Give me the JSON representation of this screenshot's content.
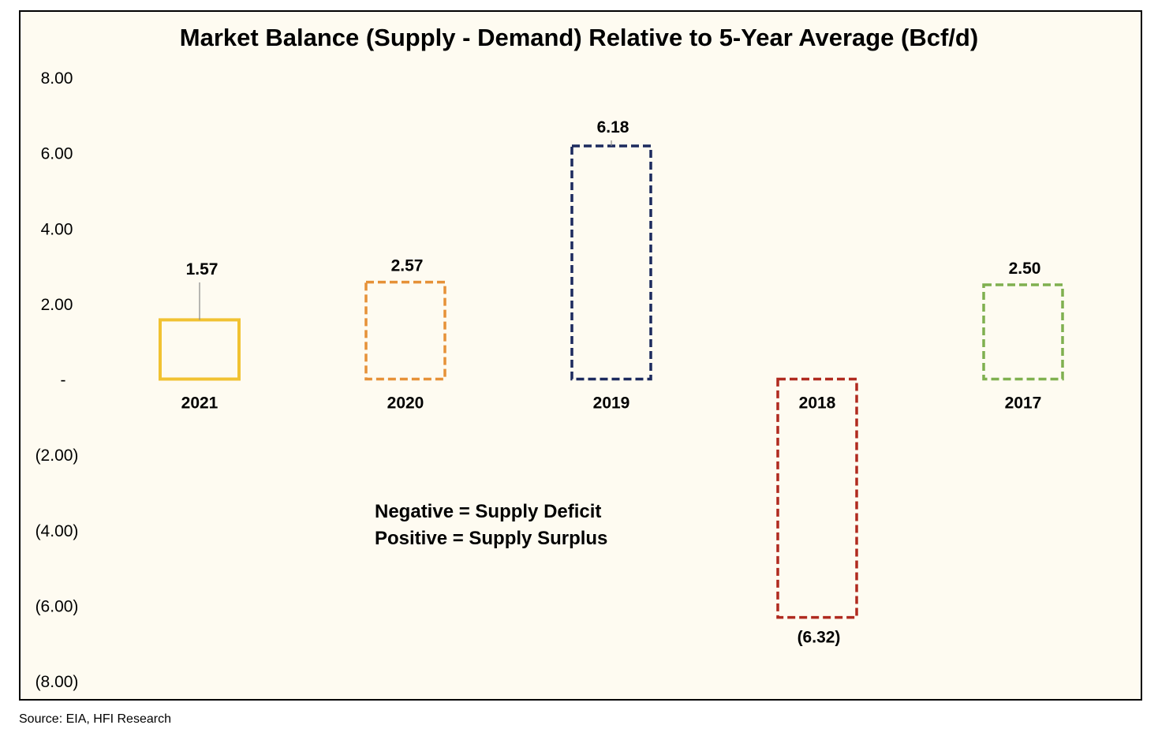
{
  "chart_data": {
    "type": "bar",
    "title": "Market Balance (Supply - Demand) Relative to 5-Year Average (Bcf/d)",
    "categories": [
      "2021",
      "2020",
      "2019",
      "2018",
      "2017"
    ],
    "values": [
      1.57,
      2.57,
      6.18,
      -6.32,
      2.5
    ],
    "value_labels": [
      "1.57",
      "2.57",
      "6.18",
      "(6.32)",
      "2.50"
    ],
    "colors": [
      "#f1c232",
      "#e69138",
      "#1c2a5e",
      "#b02a1f",
      "#7fb04f"
    ],
    "styles": [
      "solid",
      "dashed",
      "dashed",
      "dashed",
      "dashed"
    ],
    "ylim": [
      -8,
      8
    ],
    "yticks": [
      8,
      6,
      4,
      2,
      0,
      -2,
      -4,
      -6,
      -8
    ],
    "ytick_labels": [
      "8.00",
      "6.00",
      "4.00",
      "2.00",
      "-",
      "(2.00)",
      "(4.00)",
      "(6.00)",
      "(8.00)"
    ],
    "xlabel": "",
    "ylabel": "",
    "annotations": [
      "Negative = Supply Deficit",
      "Positive = Supply Surplus"
    ]
  },
  "source": "Source: EIA, HFI Research"
}
